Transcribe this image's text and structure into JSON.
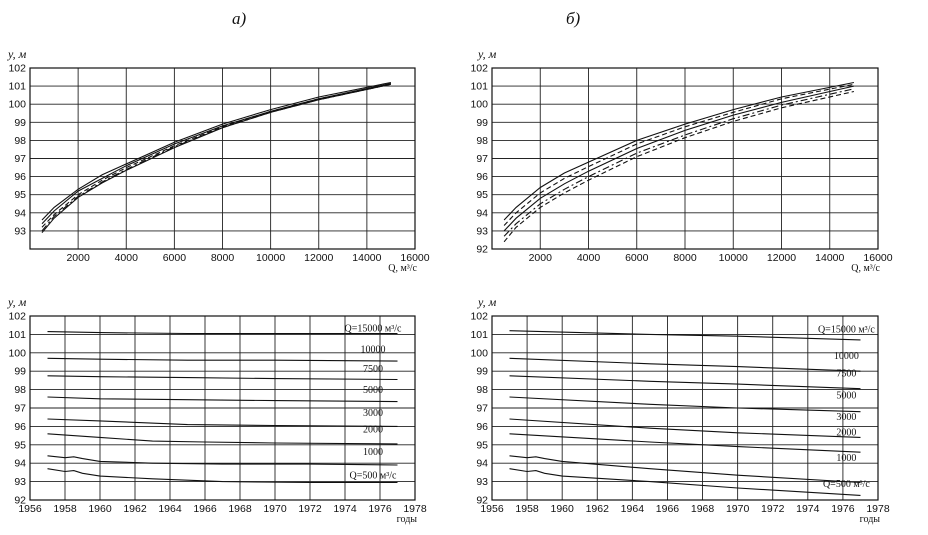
{
  "chart_data": [
    {
      "panel": "a)",
      "type": "line",
      "ylabel": "y, м",
      "xlabel": "Q, м³/с",
      "xlim": [
        0,
        16000
      ],
      "ylim": [
        92,
        102
      ],
      "xticks": [
        2000,
        4000,
        6000,
        8000,
        10000,
        12000,
        14000,
        16000
      ],
      "yticks": [
        93,
        94,
        95,
        96,
        97,
        98,
        99,
        100,
        101,
        102
      ],
      "grid": true,
      "series": [
        {
          "x": [
            500,
            1000,
            2000,
            3000,
            4000,
            6000,
            8000,
            10000,
            12000,
            15000
          ],
          "values": [
            93.6,
            94.3,
            95.3,
            96.1,
            96.7,
            97.9,
            98.9,
            99.7,
            100.4,
            101.2
          ],
          "dash": "solid"
        },
        {
          "x": [
            500,
            1000,
            2000,
            3000,
            4000,
            6000,
            8000,
            10000,
            12000,
            15000
          ],
          "values": [
            93.4,
            94.1,
            95.2,
            95.9,
            96.6,
            97.8,
            98.8,
            99.6,
            100.3,
            101.15
          ],
          "dash": "solid"
        },
        {
          "x": [
            500,
            1000,
            2000,
            3000,
            4000,
            6000,
            8000,
            10000,
            12000,
            15000
          ],
          "values": [
            93.2,
            93.9,
            95.0,
            95.8,
            96.5,
            97.7,
            98.75,
            99.6,
            100.3,
            101.1
          ],
          "dash": "dash"
        },
        {
          "x": [
            500,
            1000,
            2000,
            3000,
            4000,
            6000,
            8000,
            10000,
            12000,
            15000
          ],
          "values": [
            93.0,
            93.8,
            94.9,
            95.7,
            96.4,
            97.65,
            98.7,
            99.55,
            100.25,
            101.1
          ],
          "dash": "dashdot"
        },
        {
          "x": [
            500,
            1000,
            2000,
            3000,
            4000,
            6000,
            8000,
            10000,
            12000,
            15000
          ],
          "values": [
            92.9,
            93.7,
            94.85,
            95.65,
            96.35,
            97.6,
            98.7,
            99.55,
            100.25,
            101.1
          ],
          "dash": "solid"
        }
      ]
    },
    {
      "panel": "б)",
      "type": "line",
      "ylabel": "y, м",
      "xlabel": "Q, м³/с",
      "xlim": [
        0,
        16000
      ],
      "ylim": [
        92,
        102
      ],
      "xticks": [
        2000,
        4000,
        6000,
        8000,
        10000,
        12000,
        14000,
        16000
      ],
      "yticks": [
        92,
        93,
        94,
        95,
        96,
        97,
        98,
        99,
        100,
        101,
        102
      ],
      "grid": true,
      "series": [
        {
          "x": [
            500,
            1000,
            2000,
            3000,
            4000,
            6000,
            8000,
            10000,
            12000,
            15000
          ],
          "values": [
            93.6,
            94.3,
            95.4,
            96.2,
            96.8,
            98.0,
            98.9,
            99.7,
            100.4,
            101.2
          ],
          "dash": "solid"
        },
        {
          "x": [
            500,
            1000,
            2000,
            3000,
            4000,
            6000,
            8000,
            10000,
            12000,
            15000
          ],
          "values": [
            93.3,
            94.0,
            95.1,
            95.9,
            96.55,
            97.8,
            98.75,
            99.55,
            100.3,
            101.1
          ],
          "dash": "dash"
        },
        {
          "x": [
            500,
            1000,
            2000,
            3000,
            4000,
            6000,
            8000,
            10000,
            12000,
            15000
          ],
          "values": [
            93.0,
            93.7,
            94.8,
            95.6,
            96.3,
            97.55,
            98.55,
            99.4,
            100.1,
            101.0
          ],
          "dash": "solid"
        },
        {
          "x": [
            500,
            1000,
            2000,
            3000,
            4000,
            6000,
            8000,
            10000,
            12000,
            15000
          ],
          "values": [
            92.7,
            93.4,
            94.5,
            95.3,
            96.0,
            97.3,
            98.3,
            99.2,
            99.95,
            100.85
          ],
          "dash": "dashdot"
        },
        {
          "x": [
            500,
            1000,
            2000,
            3000,
            4000,
            6000,
            8000,
            10000,
            12000,
            15000
          ],
          "values": [
            92.4,
            93.2,
            94.3,
            95.1,
            95.8,
            97.1,
            98.15,
            99.05,
            99.8,
            100.7
          ],
          "dash": "dash"
        }
      ]
    },
    {
      "panel": "a-lower",
      "type": "line",
      "ylabel": "y, м",
      "xlabel": "годы",
      "xlim": [
        1956,
        1978
      ],
      "ylim": [
        92,
        102
      ],
      "xticks": [
        1956,
        1958,
        1960,
        1962,
        1964,
        1966,
        1968,
        1970,
        1972,
        1974,
        1976,
        1978
      ],
      "yticks": [
        92,
        93,
        94,
        95,
        96,
        97,
        98,
        99,
        100,
        101,
        102
      ],
      "grid": true,
      "series": [
        {
          "name": "Q=15000 м³/с",
          "x": [
            1957,
            1960,
            1965,
            1970,
            1977
          ],
          "values": [
            101.15,
            101.1,
            101.05,
            101.05,
            101.05
          ]
        },
        {
          "name": "10000",
          "x": [
            1957,
            1960,
            1965,
            1970,
            1977
          ],
          "values": [
            99.7,
            99.65,
            99.6,
            99.6,
            99.55
          ]
        },
        {
          "name": "7500",
          "x": [
            1957,
            1960,
            1965,
            1970,
            1977
          ],
          "values": [
            98.75,
            98.7,
            98.65,
            98.6,
            98.55
          ]
        },
        {
          "name": "5000",
          "x": [
            1957,
            1960,
            1965,
            1970,
            1977
          ],
          "values": [
            97.6,
            97.5,
            97.45,
            97.4,
            97.35
          ]
        },
        {
          "name": "3000",
          "x": [
            1957,
            1960,
            1965,
            1970,
            1977
          ],
          "values": [
            96.4,
            96.3,
            96.1,
            96.05,
            96.0
          ]
        },
        {
          "name": "2000",
          "x": [
            1957,
            1960,
            1963,
            1966,
            1970,
            1977
          ],
          "values": [
            95.6,
            95.4,
            95.2,
            95.15,
            95.1,
            95.05
          ]
        },
        {
          "name": "1000",
          "x": [
            1957,
            1958,
            1958.5,
            1959,
            1960,
            1963,
            1967,
            1972,
            1977
          ],
          "values": [
            94.4,
            94.3,
            94.35,
            94.25,
            94.1,
            94.0,
            93.95,
            93.95,
            93.9
          ]
        },
        {
          "name": "Q=500 м³/с",
          "x": [
            1957,
            1958,
            1958.5,
            1959,
            1960,
            1963,
            1967,
            1972,
            1977
          ],
          "values": [
            93.7,
            93.55,
            93.6,
            93.45,
            93.3,
            93.15,
            93.0,
            92.95,
            92.95
          ]
        }
      ]
    },
    {
      "panel": "б-lower",
      "type": "line",
      "ylabel": "y, м",
      "xlabel": "годы",
      "xlim": [
        1956,
        1978
      ],
      "ylim": [
        92,
        102
      ],
      "xticks": [
        1956,
        1958,
        1960,
        1962,
        1964,
        1966,
        1968,
        1970,
        1972,
        1974,
        1976,
        1978
      ],
      "yticks": [
        92,
        93,
        94,
        95,
        96,
        97,
        98,
        99,
        100,
        101,
        102
      ],
      "grid": true,
      "series": [
        {
          "name": "Q=15000 м³/с",
          "x": [
            1957,
            1965,
            1970,
            1977
          ],
          "values": [
            101.2,
            101.0,
            100.9,
            100.7
          ]
        },
        {
          "name": "10000",
          "x": [
            1957,
            1965,
            1970,
            1977
          ],
          "values": [
            99.7,
            99.4,
            99.25,
            99.0
          ]
        },
        {
          "name": "7500",
          "x": [
            1957,
            1965,
            1970,
            1977
          ],
          "values": [
            98.75,
            98.45,
            98.3,
            98.05
          ]
        },
        {
          "name": "5000",
          "x": [
            1957,
            1965,
            1970,
            1977
          ],
          "values": [
            97.6,
            97.2,
            97.0,
            96.8
          ]
        },
        {
          "name": "3000",
          "x": [
            1957,
            1965,
            1970,
            1977
          ],
          "values": [
            96.4,
            95.9,
            95.65,
            95.4
          ]
        },
        {
          "name": "2000",
          "x": [
            1957,
            1965,
            1970,
            1977
          ],
          "values": [
            95.6,
            95.15,
            94.9,
            94.6
          ]
        },
        {
          "name": "1000",
          "x": [
            1957,
            1958,
            1958.5,
            1959,
            1960,
            1965,
            1970,
            1977
          ],
          "values": [
            94.4,
            94.3,
            94.35,
            94.25,
            94.1,
            93.7,
            93.35,
            92.95
          ]
        },
        {
          "name": "Q=500 м³/с",
          "x": [
            1957,
            1958,
            1958.5,
            1959,
            1960,
            1965,
            1970,
            1977
          ],
          "values": [
            93.7,
            93.55,
            93.6,
            93.45,
            93.3,
            93.0,
            92.65,
            92.25
          ]
        }
      ]
    }
  ],
  "labels": {
    "panel_a": "а)",
    "panel_b": "б)",
    "ylabel": "y, м",
    "q_axis": "Q, м³/с",
    "years_axis": "годы"
  },
  "annotations_a": [
    "Q=15000 м³/с",
    "10000",
    "7500",
    "5000",
    "3000",
    "2000",
    "1000",
    "Q=500 м³/с"
  ],
  "annotations_b": [
    "Q=15000 м³/с",
    "10000",
    "7500",
    "5000",
    "3000",
    "2000",
    "1000",
    "Q=500 м³/с"
  ]
}
